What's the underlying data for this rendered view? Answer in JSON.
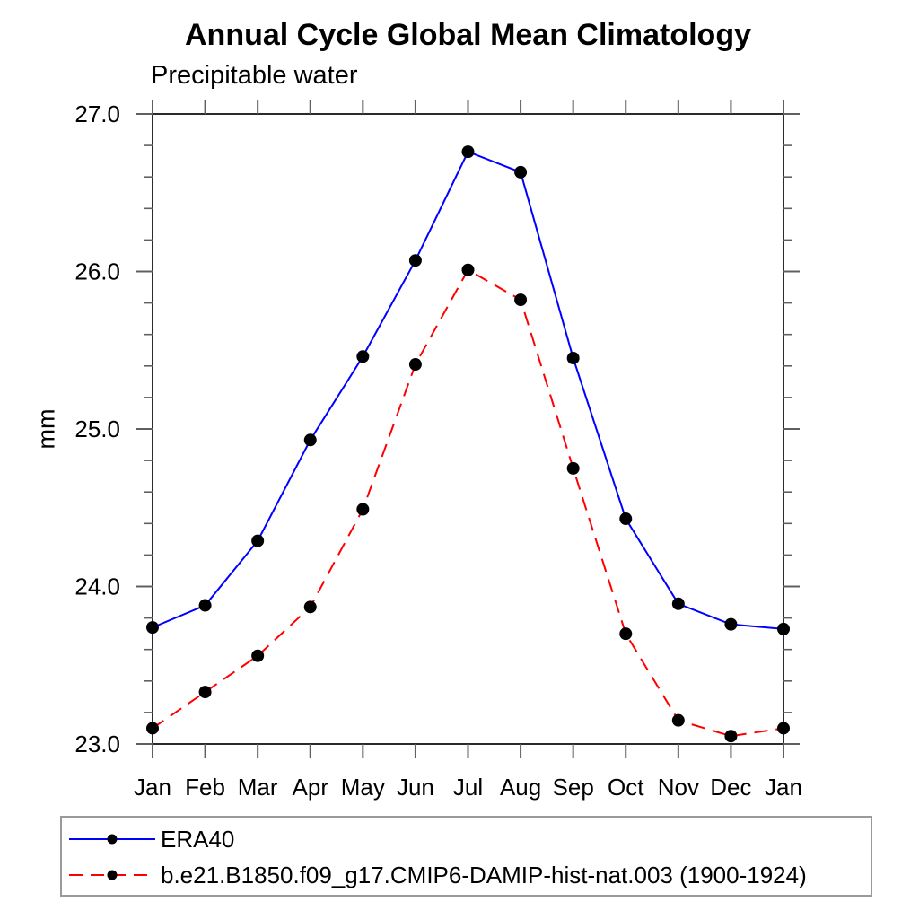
{
  "chart_data": {
    "type": "line",
    "title": "Annual Cycle Global Mean Climatology",
    "left_subtitle": "Precipitable water",
    "ylabel": "mm",
    "xlabel": "",
    "categories": [
      "Jan",
      "Feb",
      "Mar",
      "Apr",
      "May",
      "Jun",
      "Jul",
      "Aug",
      "Sep",
      "Oct",
      "Nov",
      "Dec",
      "Jan"
    ],
    "ylim": [
      23.0,
      27.0
    ],
    "y_major_tick_values": [
      23.0,
      24.0,
      25.0,
      26.0,
      27.0
    ],
    "y_major_tick_labels": [
      "23.0",
      "24.0",
      "25.0",
      "26.0",
      "27.0"
    ],
    "y_minor_step": 0.2,
    "grid": "off",
    "legend_position": "bottom-left-box",
    "axis_color": "#2b2b2b",
    "tick_color": "#606060",
    "marker": "filled-circle",
    "series": [
      {
        "name": "ERA40",
        "color": "#0000ff",
        "line_style": "solid",
        "marker_color": "#000000",
        "values": [
          23.74,
          23.88,
          24.29,
          24.93,
          25.46,
          26.07,
          26.76,
          26.63,
          25.45,
          24.43,
          23.89,
          23.76,
          23.73
        ]
      },
      {
        "name": "b.e21.B1850.f09_g17.CMIP6-DAMIP-hist-nat.003 (1900-1924)",
        "color": "#ff0000",
        "line_style": "dashed",
        "marker_color": "#000000",
        "values": [
          23.1,
          23.33,
          23.56,
          23.87,
          24.49,
          25.41,
          26.01,
          25.82,
          24.75,
          23.7,
          23.15,
          23.05,
          23.1
        ]
      }
    ]
  }
}
